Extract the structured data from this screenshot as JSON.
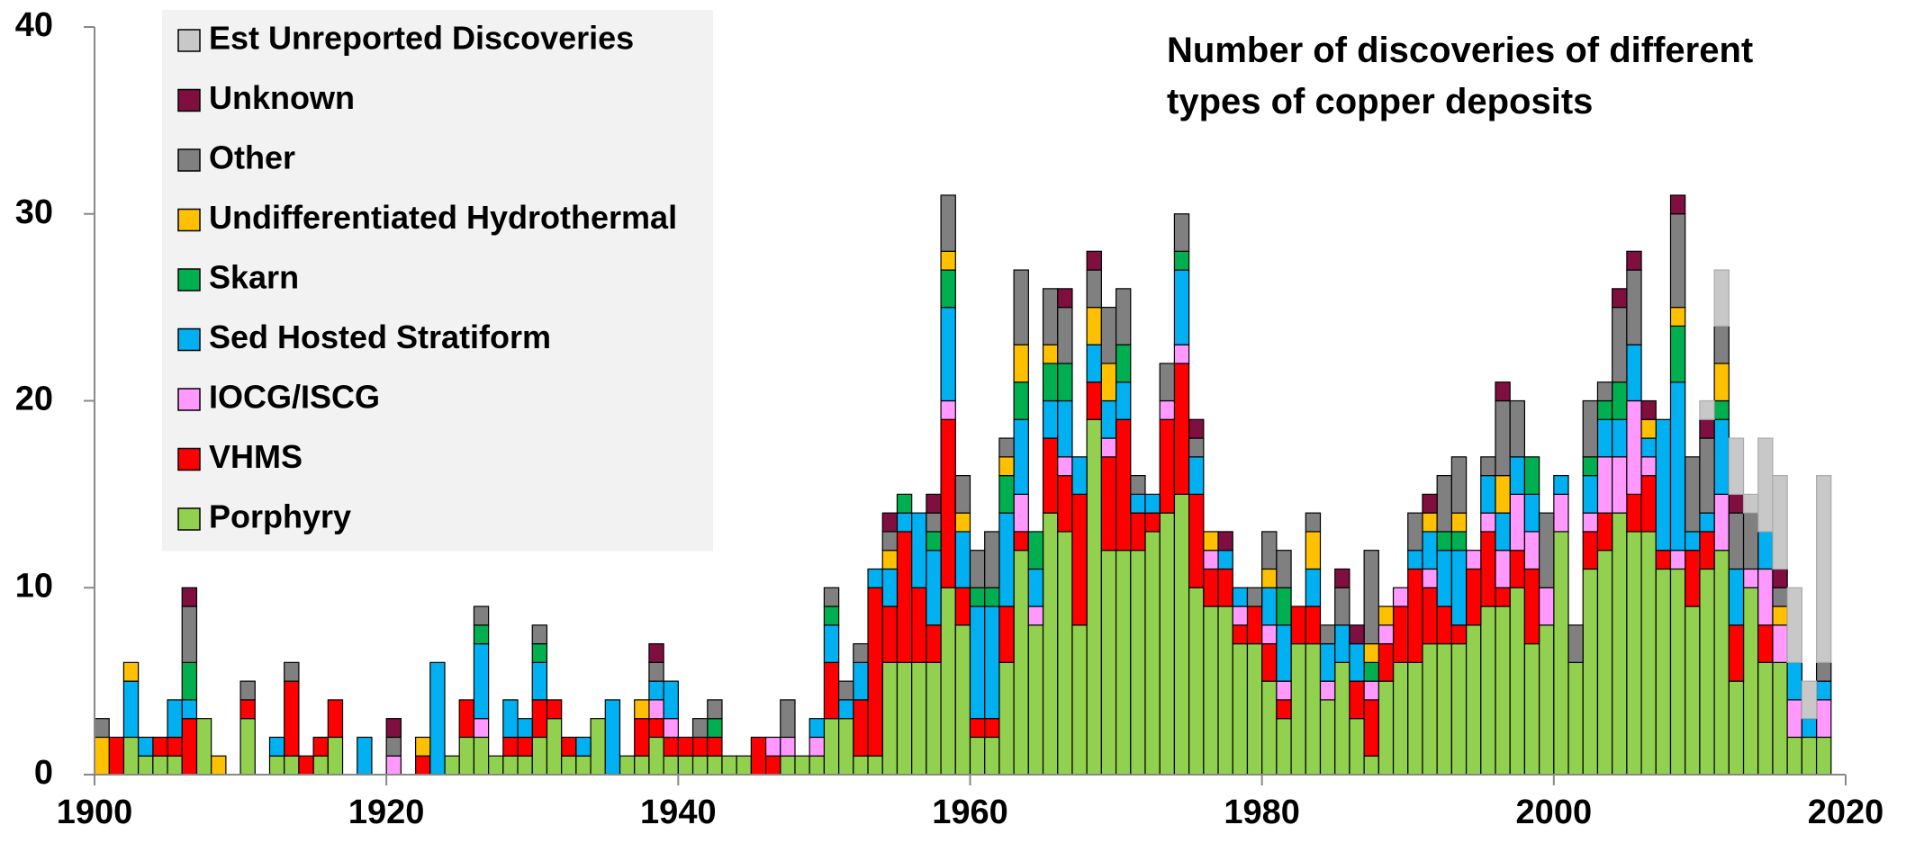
{
  "chart_data": {
    "type": "bar",
    "stacked": true,
    "title": "Number of discoveries of different types of copper deposits",
    "x": [
      1900,
      1901,
      1902,
      1903,
      1904,
      1905,
      1906,
      1907,
      1908,
      1909,
      1910,
      1911,
      1912,
      1913,
      1914,
      1915,
      1916,
      1917,
      1918,
      1919,
      1920,
      1921,
      1922,
      1923,
      1924,
      1925,
      1926,
      1927,
      1928,
      1929,
      1930,
      1931,
      1932,
      1933,
      1934,
      1935,
      1936,
      1937,
      1938,
      1939,
      1940,
      1941,
      1942,
      1943,
      1944,
      1945,
      1946,
      1947,
      1948,
      1949,
      1950,
      1951,
      1952,
      1953,
      1954,
      1955,
      1956,
      1957,
      1958,
      1959,
      1960,
      1961,
      1962,
      1963,
      1964,
      1965,
      1966,
      1967,
      1968,
      1969,
      1970,
      1971,
      1972,
      1973,
      1974,
      1975,
      1976,
      1977,
      1978,
      1979,
      1980,
      1981,
      1982,
      1983,
      1984,
      1985,
      1986,
      1987,
      1988,
      1989,
      1990,
      1991,
      1992,
      1993,
      1994,
      1995,
      1996,
      1997,
      1998,
      1999,
      2000,
      2001,
      2002,
      2003,
      2004,
      2005,
      2006,
      2007,
      2008,
      2009,
      2010,
      2011,
      2012,
      2013,
      2014,
      2015,
      2016,
      2017,
      2018
    ],
    "series": [
      {
        "name": "Porphyry",
        "color": "#92d050",
        "values": [
          0,
          0,
          2,
          1,
          1,
          1,
          0,
          3,
          0,
          0,
          3,
          0,
          1,
          1,
          0,
          1,
          2,
          0,
          0,
          0,
          0,
          0,
          0,
          0,
          1,
          2,
          2,
          1,
          1,
          1,
          2,
          3,
          1,
          1,
          3,
          0,
          1,
          1,
          2,
          1,
          1,
          1,
          1,
          1,
          1,
          0,
          0,
          1,
          1,
          1,
          3,
          3,
          1,
          1,
          6,
          6,
          6,
          6,
          10,
          8,
          2,
          2,
          6,
          12,
          8,
          14,
          13,
          8,
          19,
          12,
          12,
          12,
          13,
          14,
          15,
          10,
          9,
          9,
          7,
          7,
          5,
          3,
          7,
          7,
          4,
          6,
          3,
          1,
          5,
          6,
          6,
          7,
          7,
          7,
          8,
          9,
          9,
          10,
          7,
          8,
          13,
          6,
          11,
          12,
          14,
          13,
          13,
          11,
          11,
          9,
          11,
          12,
          5,
          10,
          6,
          6,
          2,
          2,
          2
        ]
      },
      {
        "name": "VHMS",
        "color": "#ff0000",
        "values": [
          0,
          2,
          0,
          0,
          1,
          1,
          3,
          0,
          0,
          0,
          1,
          0,
          0,
          4,
          1,
          1,
          2,
          0,
          0,
          0,
          0,
          0,
          1,
          0,
          0,
          2,
          0,
          0,
          1,
          1,
          2,
          1,
          1,
          0,
          0,
          0,
          0,
          2,
          1,
          1,
          1,
          1,
          1,
          0,
          0,
          2,
          1,
          0,
          0,
          0,
          3,
          0,
          3,
          9,
          3,
          7,
          4,
          2,
          9,
          2,
          1,
          1,
          3,
          1,
          0,
          4,
          3,
          7,
          2,
          5,
          7,
          2,
          1,
          5,
          7,
          5,
          2,
          2,
          1,
          2,
          2,
          1,
          2,
          2,
          0,
          0,
          2,
          3,
          2,
          3,
          5,
          3,
          2,
          1,
          3,
          4,
          1,
          2,
          4,
          0,
          0,
          0,
          2,
          2,
          0,
          2,
          3,
          1,
          0,
          3,
          2,
          0,
          3,
          0,
          2,
          0,
          0,
          0,
          0
        ]
      },
      {
        "name": "IOCG/ISCG",
        "color": "#ff99ff",
        "values": [
          0,
          0,
          0,
          0,
          0,
          0,
          0,
          0,
          0,
          0,
          0,
          0,
          0,
          0,
          0,
          0,
          0,
          0,
          0,
          0,
          1,
          0,
          0,
          0,
          0,
          0,
          1,
          0,
          0,
          0,
          0,
          0,
          0,
          0,
          0,
          0,
          0,
          0,
          1,
          1,
          0,
          0,
          0,
          0,
          0,
          0,
          1,
          1,
          0,
          1,
          0,
          0,
          0,
          0,
          0,
          0,
          0,
          0,
          1,
          0,
          0,
          0,
          0,
          2,
          1,
          0,
          1,
          0,
          0,
          1,
          0,
          0,
          0,
          1,
          1,
          0,
          1,
          0,
          1,
          0,
          1,
          1,
          0,
          0,
          1,
          0,
          0,
          1,
          1,
          1,
          0,
          1,
          0,
          0,
          1,
          1,
          2,
          3,
          2,
          2,
          2,
          0,
          1,
          3,
          3,
          5,
          1,
          0,
          1,
          0,
          0,
          3,
          0,
          1,
          3,
          2,
          2,
          0,
          2
        ]
      },
      {
        "name": "Sed Hosted Stratiform",
        "color": "#00b0f0",
        "values": [
          0,
          0,
          3,
          1,
          0,
          2,
          1,
          0,
          0,
          0,
          0,
          0,
          1,
          0,
          0,
          0,
          0,
          0,
          2,
          0,
          0,
          0,
          0,
          6,
          0,
          0,
          4,
          0,
          2,
          1,
          2,
          0,
          0,
          1,
          0,
          4,
          0,
          0,
          1,
          2,
          0,
          0,
          0,
          0,
          0,
          0,
          0,
          0,
          0,
          1,
          2,
          1,
          2,
          1,
          2,
          1,
          4,
          4,
          5,
          3,
          6,
          6,
          5,
          4,
          2,
          2,
          3,
          2,
          2,
          2,
          2,
          1,
          1,
          0,
          4,
          2,
          0,
          1,
          1,
          0,
          2,
          3,
          0,
          2,
          2,
          2,
          2,
          0,
          0,
          0,
          1,
          2,
          3,
          4,
          0,
          2,
          2,
          2,
          2,
          0,
          1,
          0,
          2,
          2,
          2,
          3,
          1,
          7,
          9,
          1,
          1,
          4,
          3,
          0,
          2,
          0,
          2,
          1,
          1
        ]
      },
      {
        "name": "Skarn",
        "color": "#00b050",
        "values": [
          0,
          0,
          0,
          0,
          0,
          0,
          2,
          0,
          0,
          0,
          0,
          0,
          0,
          0,
          0,
          0,
          0,
          0,
          0,
          0,
          0,
          0,
          0,
          0,
          0,
          0,
          1,
          0,
          0,
          0,
          1,
          0,
          0,
          0,
          0,
          0,
          0,
          0,
          0,
          0,
          0,
          0,
          1,
          0,
          0,
          0,
          0,
          0,
          0,
          0,
          1,
          0,
          0,
          0,
          0,
          1,
          0,
          1,
          2,
          0,
          1,
          1,
          2,
          2,
          2,
          2,
          2,
          0,
          0,
          0,
          2,
          0,
          0,
          0,
          1,
          0,
          0,
          0,
          0,
          0,
          0,
          2,
          0,
          0,
          0,
          0,
          0,
          1,
          0,
          0,
          0,
          0,
          1,
          1,
          0,
          0,
          0,
          0,
          2,
          0,
          0,
          0,
          1,
          1,
          2,
          0,
          0,
          0,
          3,
          0,
          0,
          1,
          0,
          0,
          0,
          0,
          0,
          0,
          0
        ]
      },
      {
        "name": "Undifferentiated Hydrothermal",
        "color": "#ffc000",
        "values": [
          2,
          0,
          1,
          0,
          0,
          0,
          0,
          0,
          1,
          0,
          0,
          0,
          0,
          0,
          0,
          0,
          0,
          0,
          0,
          0,
          0,
          0,
          1,
          0,
          0,
          0,
          0,
          0,
          0,
          0,
          0,
          0,
          0,
          0,
          0,
          0,
          0,
          1,
          0,
          0,
          0,
          0,
          0,
          0,
          0,
          0,
          0,
          0,
          0,
          0,
          0,
          0,
          0,
          0,
          1,
          0,
          0,
          0,
          1,
          1,
          0,
          0,
          1,
          2,
          0,
          1,
          0,
          0,
          2,
          2,
          0,
          0,
          0,
          0,
          0,
          0,
          1,
          0,
          0,
          0,
          1,
          0,
          0,
          2,
          0,
          0,
          0,
          1,
          1,
          0,
          0,
          1,
          0,
          1,
          0,
          0,
          2,
          0,
          0,
          0,
          0,
          0,
          0,
          0,
          0,
          0,
          1,
          0,
          1,
          0,
          0,
          2,
          0,
          0,
          0,
          1,
          0,
          0,
          0
        ]
      },
      {
        "name": "Other",
        "color": "#808080",
        "values": [
          1,
          0,
          0,
          0,
          0,
          0,
          3,
          0,
          0,
          0,
          1,
          0,
          0,
          1,
          0,
          0,
          0,
          0,
          0,
          0,
          1,
          0,
          0,
          0,
          0,
          0,
          1,
          0,
          0,
          0,
          1,
          0,
          0,
          0,
          0,
          0,
          0,
          0,
          1,
          0,
          0,
          1,
          1,
          0,
          0,
          0,
          0,
          2,
          0,
          0,
          1,
          1,
          1,
          0,
          1,
          0,
          0,
          1,
          3,
          2,
          2,
          3,
          1,
          4,
          0,
          3,
          3,
          0,
          2,
          3,
          3,
          1,
          0,
          2,
          2,
          1,
          0,
          0,
          0,
          1,
          2,
          2,
          0,
          1,
          1,
          2,
          0,
          5,
          0,
          0,
          2,
          0,
          3,
          3,
          0,
          1,
          4,
          3,
          0,
          4,
          0,
          2,
          3,
          1,
          4,
          4,
          0,
          0,
          5,
          4,
          4,
          2,
          3,
          3,
          0,
          1,
          0,
          0,
          1
        ]
      },
      {
        "name": "Unknown",
        "color": "#7f0f3f",
        "values": [
          0,
          0,
          0,
          0,
          0,
          0,
          1,
          0,
          0,
          0,
          0,
          0,
          0,
          0,
          0,
          0,
          0,
          0,
          0,
          0,
          1,
          0,
          0,
          0,
          0,
          0,
          0,
          0,
          0,
          0,
          0,
          0,
          0,
          0,
          0,
          0,
          0,
          0,
          1,
          0,
          0,
          0,
          0,
          0,
          0,
          0,
          0,
          0,
          0,
          0,
          0,
          0,
          0,
          0,
          1,
          0,
          0,
          1,
          0,
          0,
          0,
          0,
          0,
          0,
          0,
          0,
          1,
          0,
          1,
          0,
          0,
          0,
          0,
          0,
          0,
          1,
          0,
          1,
          0,
          0,
          0,
          0,
          0,
          0,
          0,
          1,
          1,
          0,
          0,
          0,
          0,
          1,
          0,
          0,
          0,
          0,
          1,
          0,
          0,
          0,
          0,
          0,
          0,
          0,
          1,
          1,
          1,
          0,
          1,
          0,
          1,
          0,
          1,
          0,
          0,
          1,
          0,
          0,
          0
        ]
      },
      {
        "name": "Est Unreported Discoveries",
        "color": "#c8c8c8",
        "values": [
          0,
          0,
          0,
          0,
          0,
          0,
          0,
          0,
          0,
          0,
          0,
          0,
          0,
          0,
          0,
          0,
          0,
          0,
          0,
          0,
          0,
          0,
          0,
          0,
          0,
          0,
          0,
          0,
          0,
          0,
          0,
          0,
          0,
          0,
          0,
          0,
          0,
          0,
          0,
          0,
          0,
          0,
          0,
          0,
          0,
          0,
          0,
          0,
          0,
          0,
          0,
          0,
          0,
          0,
          0,
          0,
          0,
          0,
          0,
          0,
          0,
          0,
          0,
          0,
          0,
          0,
          0,
          0,
          0,
          0,
          0,
          0,
          0,
          0,
          0,
          0,
          0,
          0,
          0,
          0,
          0,
          0,
          0,
          0,
          0,
          0,
          0,
          0,
          0,
          0,
          0,
          0,
          0,
          0,
          0,
          0,
          0,
          0,
          0,
          0,
          0,
          0,
          0,
          0,
          0,
          0,
          0,
          0,
          0,
          0,
          1,
          3,
          3,
          1,
          5,
          5,
          4,
          2,
          10
        ]
      }
    ],
    "xlim": [
      1900,
      2020
    ],
    "xticks": [
      1900,
      1920,
      1940,
      1960,
      1980,
      2000,
      2020
    ],
    "ylim": [
      0,
      40
    ],
    "yticks": [
      0,
      10,
      20,
      30,
      40
    ],
    "legend": "upper left"
  }
}
